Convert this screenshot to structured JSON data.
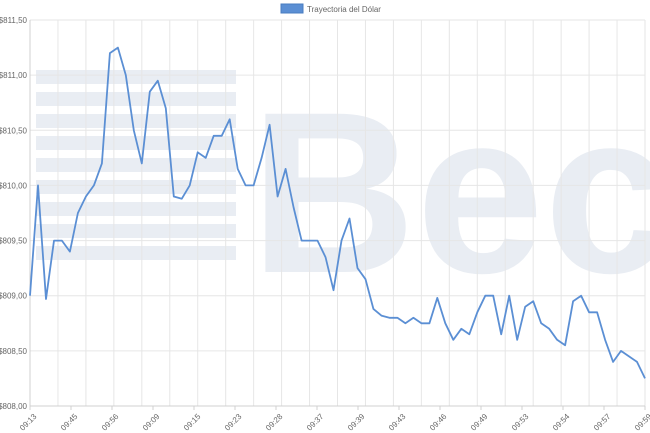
{
  "chart_data": {
    "type": "line",
    "legend": {
      "position": "top-center",
      "label": "Trayectoria del Dólar"
    },
    "ylim": [
      808.0,
      811.5
    ],
    "y_ticks": [
      "$811,50",
      "$811,00",
      "$810,50",
      "$810,00",
      "$809,50",
      "$809,00",
      "$808,50",
      "$808,00"
    ],
    "x_ticks": [
      "09:13",
      "09:45",
      "09:56",
      "09:09",
      "09:15",
      "09:23",
      "09:28",
      "09:37",
      "09:39",
      "09:43",
      "09:46",
      "09:49",
      "09:53",
      "09:54",
      "09:57",
      "09:59"
    ],
    "grid": true,
    "series": [
      {
        "name": "Trayectoria del Dólar",
        "color": "#5b8fd4",
        "values": [
          809.0,
          810.0,
          808.97,
          809.5,
          809.5,
          809.4,
          809.75,
          809.9,
          810.0,
          810.2,
          811.2,
          811.25,
          811.0,
          810.5,
          810.2,
          810.85,
          810.95,
          810.7,
          809.9,
          809.88,
          810.0,
          810.3,
          810.25,
          810.45,
          810.45,
          810.6,
          810.15,
          810.0,
          810.0,
          810.25,
          810.55,
          809.9,
          810.15,
          809.8,
          809.5,
          809.5,
          809.5,
          809.35,
          809.05,
          809.5,
          809.7,
          809.25,
          809.15,
          808.88,
          808.82,
          808.8,
          808.8,
          808.75,
          808.8,
          808.75,
          808.75,
          808.98,
          808.75,
          808.6,
          808.7,
          808.65,
          808.85,
          809.0,
          809.0,
          808.65,
          809.0,
          808.6,
          808.9,
          808.95,
          808.75,
          808.7,
          808.6,
          808.55,
          808.95,
          809.0,
          808.85,
          808.85,
          808.6,
          808.4,
          808.5,
          808.45,
          808.4,
          808.25
        ]
      }
    ]
  },
  "watermark": {
    "text": "Bec",
    "color": "#e9edf3"
  }
}
